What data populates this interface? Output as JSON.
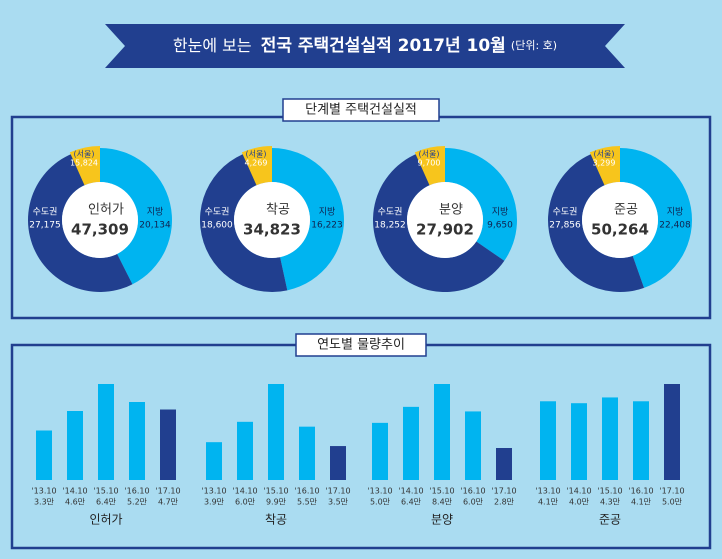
{
  "header": {
    "intro": "한눈에 보는",
    "title": "전국 주택건설실적 2017년 10월",
    "unit": "(단위: 호)"
  },
  "sections": [
    "단계별 주택건설실적",
    "연도별 물량추이"
  ],
  "chart_data": [
    {
      "type": "pie",
      "title": "인허가",
      "total": {
        "value": 47309,
        "label": "47,309"
      },
      "categories": [
        "수도권",
        "지방"
      ],
      "values": [
        27175,
        20134
      ],
      "value_labels": [
        "27,175",
        "20,134"
      ],
      "colors": [
        "#213f8f",
        "#00b4f0"
      ],
      "seoul": {
        "name": "(서울)",
        "value": 15824,
        "label": "15,824",
        "color": "#f7c51c"
      }
    },
    {
      "type": "pie",
      "title": "착공",
      "total": {
        "value": 34823,
        "label": "34,823"
      },
      "categories": [
        "수도권",
        "지방"
      ],
      "values": [
        18600,
        16223
      ],
      "value_labels": [
        "18,600",
        "16,223"
      ],
      "colors": [
        "#213f8f",
        "#00b4f0"
      ],
      "seoul": {
        "name": "(서울)",
        "value": 4269,
        "label": "4,269",
        "color": "#f7c51c"
      }
    },
    {
      "type": "pie",
      "title": "분양",
      "total": {
        "value": 27902,
        "label": "27,902"
      },
      "categories": [
        "수도권",
        "지방"
      ],
      "values": [
        18252,
        9650
      ],
      "value_labels": [
        "18,252",
        "9,650"
      ],
      "colors": [
        "#213f8f",
        "#00b4f0"
      ],
      "seoul": {
        "name": "(서울)",
        "value": 9700,
        "label": "9,700",
        "color": "#f7c51c"
      }
    },
    {
      "type": "pie",
      "title": "준공",
      "total": {
        "value": 50264,
        "label": "50,264"
      },
      "categories": [
        "수도권",
        "지방"
      ],
      "values": [
        27856,
        22408
      ],
      "value_labels": [
        "27,856",
        "22,408"
      ],
      "colors": [
        "#213f8f",
        "#00b4f0"
      ],
      "seoul": {
        "name": "(서울)",
        "value": 3299,
        "label": "3,299",
        "color": "#f7c51c"
      }
    },
    {
      "type": "bar",
      "title": "인허가",
      "categories": [
        "'13.10",
        "'14.10",
        "'15.10",
        "'16.10",
        "'17.10"
      ],
      "values": [
        3.3,
        4.6,
        6.4,
        5.2,
        4.7
      ],
      "value_labels": [
        "3.3만",
        "4.6만",
        "6.4만",
        "5.2만",
        "4.7만"
      ],
      "colors": [
        "#00b4f0",
        "#00b4f0",
        "#00b4f0",
        "#00b4f0",
        "#213f8f"
      ]
    },
    {
      "type": "bar",
      "title": "착공",
      "categories": [
        "'13.10",
        "'14.10",
        "'15.10",
        "'16.10",
        "'17.10"
      ],
      "values": [
        3.9,
        6.0,
        9.9,
        5.5,
        3.5
      ],
      "value_labels": [
        "3.9만",
        "6.0만",
        "9.9만",
        "5.5만",
        "3.5만"
      ],
      "colors": [
        "#00b4f0",
        "#00b4f0",
        "#00b4f0",
        "#00b4f0",
        "#213f8f"
      ]
    },
    {
      "type": "bar",
      "title": "분양",
      "categories": [
        "'13.10",
        "'14.10",
        "'15.10",
        "'16.10",
        "'17.10"
      ],
      "values": [
        5.0,
        6.4,
        8.4,
        6.0,
        2.8
      ],
      "value_labels": [
        "5.0만",
        "6.4만",
        "8.4만",
        "6.0만",
        "2.8만"
      ],
      "colors": [
        "#00b4f0",
        "#00b4f0",
        "#00b4f0",
        "#00b4f0",
        "#213f8f"
      ]
    },
    {
      "type": "bar",
      "title": "준공",
      "categories": [
        "'13.10",
        "'14.10",
        "'15.10",
        "'16.10",
        "'17.10"
      ],
      "values": [
        4.1,
        4.0,
        4.3,
        4.1,
        5.0
      ],
      "value_labels": [
        "4.1만",
        "4.0만",
        "4.3만",
        "4.1만",
        "5.0만"
      ],
      "colors": [
        "#00b4f0",
        "#00b4f0",
        "#00b4f0",
        "#00b4f0",
        "#213f8f"
      ]
    }
  ]
}
